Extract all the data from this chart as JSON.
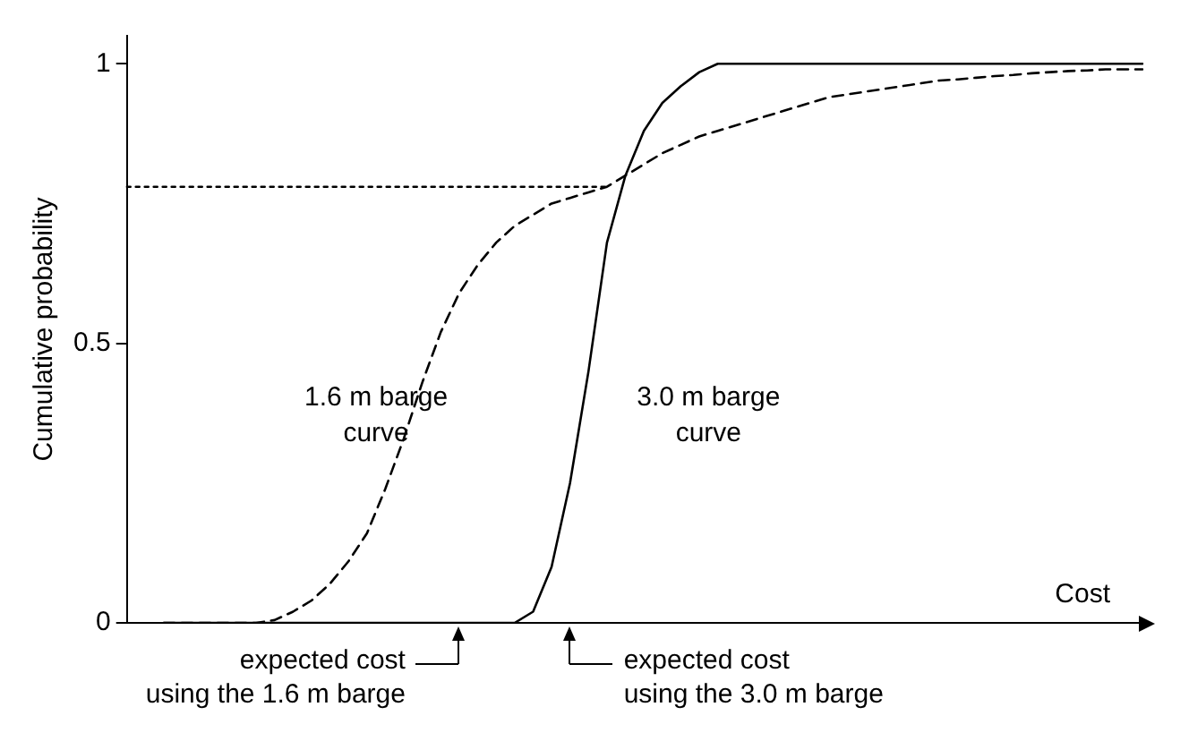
{
  "chart_data": {
    "type": "line",
    "xlabel": "Cost",
    "ylabel": "Cumulative probability",
    "categories": [
      null,
      null,
      null,
      null,
      null,
      null,
      null,
      null,
      null,
      null,
      null,
      null,
      null,
      null,
      null,
      null,
      null,
      null,
      null,
      null,
      null,
      null,
      null,
      null,
      null,
      null,
      null,
      null,
      null,
      null,
      null,
      null,
      null,
      null,
      null,
      null,
      null,
      null,
      null,
      null,
      null,
      null,
      null,
      null,
      null,
      null,
      null,
      null,
      null,
      null,
      null,
      null,
      null,
      null,
      null,
      null
    ],
    "series": [
      {
        "color": "#000000",
        "line_style": "solid",
        "values": [
          null,
          null,
          0,
          0,
          0,
          0,
          0,
          0,
          0,
          0,
          0,
          0,
          0,
          0,
          0,
          0,
          0,
          0,
          0,
          0,
          0,
          0,
          0.02,
          0.1,
          0.25,
          0.45,
          0.68,
          0.8,
          0.88,
          0.93,
          0.96,
          0.985,
          1,
          1,
          1,
          1,
          1,
          1,
          1,
          1,
          1,
          1,
          1,
          1,
          1,
          1,
          1,
          1,
          1,
          1,
          1,
          1,
          1,
          1,
          1,
          1
        ]
      },
      {
        "color": "#000000",
        "line_style": "dashed",
        "values": [
          null,
          null,
          0,
          0,
          0,
          0,
          0,
          0,
          0.005,
          0.02,
          0.04,
          0.07,
          0.11,
          0.16,
          0.24,
          0.33,
          0.43,
          0.52,
          0.59,
          0.64,
          0.68,
          0.71,
          0.73,
          0.75,
          0.76,
          0.77,
          0.78,
          0.8,
          0.82,
          0.84,
          0.855,
          0.87,
          0.88,
          0.89,
          0.9,
          0.91,
          0.92,
          0.93,
          0.94,
          0.945,
          0.95,
          0.955,
          0.96,
          0.965,
          0.97,
          0.972,
          0.975,
          0.978,
          0.98,
          0.983,
          0.985,
          0.987,
          0.988,
          0.99,
          0.99,
          0.99
        ]
      },
      {
        "color": "#000000",
        "line_style": "dotted",
        "values": [
          0.78,
          0.78,
          0.78,
          0.78,
          0.78,
          0.78,
          0.78,
          0.78,
          0.78,
          0.78,
          0.78,
          0.78,
          0.78,
          0.78,
          0.78,
          0.78,
          0.78,
          0.78,
          0.78,
          0.78,
          0.78,
          0.78,
          0.78,
          0.78,
          0.78,
          0.78,
          0.78,
          null,
          null,
          null,
          null,
          null,
          null,
          null,
          null,
          null,
          null,
          null,
          null,
          null,
          null,
          null,
          null,
          null,
          null,
          null,
          null,
          null,
          null,
          null,
          null,
          null,
          null,
          null,
          null,
          null
        ]
      }
    ],
    "ylim": [
      0,
      1.05
    ],
    "yticks": [
      0,
      0.5,
      1
    ],
    "tick_labels": "y",
    "grid": false,
    "annotations": [
      "1.6 m barge curve",
      "3.0 m barge curve",
      "expected cost using the 1.6 m barge",
      "expected cost using the 3.0 m barge"
    ]
  }
}
